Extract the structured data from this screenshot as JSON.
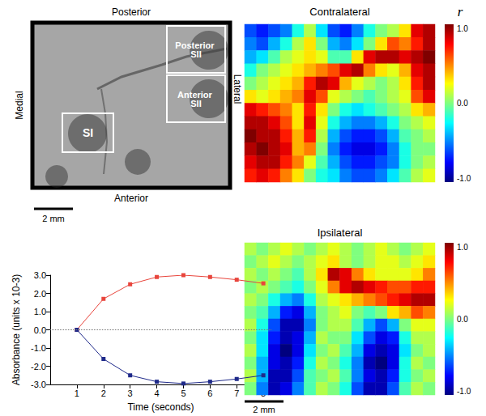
{
  "chart_data": [
    {
      "type": "image",
      "labels": {
        "top": "Posterior",
        "bottom": "Anterior",
        "left": "Medial",
        "right": "Lateral"
      },
      "regions": [
        "SI",
        "Posterior SII",
        "Anterior SII"
      ],
      "scale_bar": "2 mm"
    },
    {
      "type": "heatmap",
      "title": "Contralateral",
      "color_label": "r",
      "tick_labels": false,
      "color_range": [
        -1,
        1
      ],
      "color_ticks": [
        {
          "value": 1,
          "label": "1.0"
        },
        {
          "value": 0,
          "label": "0.0"
        },
        {
          "value": -1,
          "label": "-1.0"
        }
      ],
      "cells": [
        [
          -0.6,
          -0.7,
          -0.6,
          -0.5,
          -0.2,
          0.1,
          -0.3,
          -0.6,
          -0.7,
          -0.5,
          -0.2,
          0.0,
          0.1,
          0.3,
          0.8,
          0.9
        ],
        [
          -0.5,
          -0.6,
          -0.4,
          -0.2,
          0.1,
          0.3,
          0.0,
          -0.4,
          -0.5,
          -0.3,
          0.0,
          0.3,
          0.6,
          0.5,
          0.7,
          0.9
        ],
        [
          -0.4,
          -0.3,
          -0.1,
          0.1,
          0.2,
          0.3,
          0.2,
          -0.1,
          -0.1,
          0.3,
          0.8,
          0.9,
          0.9,
          0.8,
          0.9,
          1.0
        ],
        [
          -0.2,
          0.0,
          0.1,
          0.2,
          0.3,
          0.4,
          0.5,
          0.6,
          0.8,
          0.9,
          0.5,
          0.3,
          0.2,
          0.4,
          0.8,
          0.9
        ],
        [
          0.0,
          0.1,
          0.2,
          0.3,
          0.4,
          0.7,
          0.9,
          0.8,
          0.4,
          0.2,
          0.1,
          0.0,
          0.1,
          0.3,
          0.7,
          0.9
        ],
        [
          0.3,
          0.2,
          0.3,
          0.4,
          0.5,
          0.8,
          0.6,
          0.2,
          0.1,
          0.0,
          -0.1,
          0.0,
          0.1,
          0.2,
          0.6,
          0.8
        ],
        [
          0.8,
          0.7,
          0.6,
          0.5,
          0.3,
          0.7,
          0.3,
          0.0,
          -0.2,
          -0.3,
          -0.2,
          -0.1,
          0.0,
          0.1,
          0.3,
          0.4
        ],
        [
          0.9,
          0.9,
          0.8,
          0.6,
          0.3,
          0.8,
          0.2,
          -0.2,
          -0.4,
          -0.5,
          -0.5,
          -0.4,
          -0.2,
          0.0,
          0.1,
          0.2
        ],
        [
          1.0,
          0.9,
          0.9,
          0.7,
          0.4,
          0.7,
          0.1,
          -0.4,
          -0.6,
          -0.7,
          -0.7,
          -0.6,
          -0.4,
          -0.1,
          0.0,
          0.1
        ],
        [
          0.9,
          1.0,
          0.9,
          0.8,
          0.4,
          0.5,
          0.0,
          -0.5,
          -0.7,
          -0.8,
          -0.8,
          -0.7,
          -0.5,
          -0.2,
          0.0,
          0.0
        ],
        [
          0.8,
          0.9,
          0.9,
          0.7,
          0.5,
          0.2,
          -0.1,
          -0.4,
          -0.6,
          -0.7,
          -0.7,
          -0.6,
          -0.5,
          -0.2,
          0.0,
          0.1
        ],
        [
          0.7,
          0.8,
          0.7,
          0.5,
          0.3,
          0.0,
          -0.2,
          -0.3,
          -0.5,
          -0.6,
          -0.6,
          -0.5,
          -0.3,
          -0.1,
          0.1,
          0.2
        ]
      ]
    },
    {
      "type": "heatmap",
      "title": "Ipsilateral",
      "tick_labels": false,
      "color_range": [
        -1,
        1
      ],
      "color_ticks": [
        {
          "value": 1,
          "label": "1.0"
        },
        {
          "value": 0,
          "label": "0.0"
        },
        {
          "value": -1,
          "label": "-1.0"
        }
      ],
      "scale_bar": "2 mm",
      "cells": [
        [
          0.1,
          0.0,
          0.1,
          0.2,
          0.1,
          0.0,
          0.1,
          0.2,
          0.1,
          0.0,
          0.1,
          0.2,
          0.1,
          0.0,
          0.1,
          0.2
        ],
        [
          0.0,
          0.1,
          0.2,
          0.1,
          0.0,
          0.1,
          0.2,
          0.3,
          0.1,
          0.0,
          0.1,
          0.2,
          0.2,
          0.1,
          0.2,
          0.3
        ],
        [
          0.1,
          0.0,
          0.1,
          0.0,
          -0.1,
          0.1,
          0.3,
          0.9,
          0.8,
          0.5,
          0.3,
          0.2,
          0.2,
          0.2,
          0.3,
          0.5
        ],
        [
          0.0,
          0.1,
          0.0,
          -0.1,
          -0.2,
          0.0,
          0.2,
          0.5,
          0.8,
          0.9,
          0.8,
          0.7,
          0.6,
          0.6,
          0.7,
          0.7
        ],
        [
          0.1,
          0.0,
          -0.2,
          -0.4,
          -0.5,
          -0.2,
          0.1,
          0.2,
          0.3,
          0.4,
          0.5,
          0.6,
          0.7,
          0.8,
          0.9,
          0.9
        ],
        [
          0.0,
          -0.1,
          -0.4,
          -0.7,
          -0.8,
          -0.4,
          0.0,
          0.1,
          0.2,
          0.0,
          -0.1,
          0.0,
          0.3,
          0.4,
          0.6,
          0.5
        ],
        [
          0.1,
          -0.2,
          -0.6,
          -0.9,
          -0.9,
          -0.5,
          0.0,
          0.1,
          0.1,
          -0.1,
          -0.4,
          -0.6,
          -0.4,
          0.0,
          0.2,
          0.2
        ],
        [
          0.0,
          -0.3,
          -0.7,
          -0.9,
          -0.8,
          -0.4,
          0.1,
          0.0,
          0.0,
          -0.3,
          -0.6,
          -0.8,
          -0.7,
          -0.2,
          0.1,
          0.1
        ],
        [
          0.1,
          -0.3,
          -0.8,
          -1.0,
          -0.8,
          -0.3,
          0.0,
          0.1,
          -0.1,
          -0.4,
          -0.8,
          -0.9,
          -0.8,
          -0.3,
          0.0,
          0.1
        ],
        [
          0.0,
          -0.4,
          -0.8,
          -0.9,
          -0.7,
          -0.2,
          0.1,
          0.0,
          -0.2,
          -0.5,
          -0.9,
          -1.0,
          -0.8,
          -0.2,
          0.1,
          0.0
        ],
        [
          0.1,
          -0.4,
          -0.9,
          -0.9,
          -0.6,
          -0.1,
          0.0,
          0.1,
          -0.1,
          -0.5,
          -0.8,
          -0.9,
          -0.7,
          -0.2,
          0.0,
          0.1
        ],
        [
          0.0,
          -0.5,
          -0.9,
          -0.8,
          -0.5,
          -0.1,
          0.1,
          0.0,
          -0.2,
          -0.6,
          -0.9,
          -0.9,
          -0.6,
          -0.1,
          0.1,
          0.0
        ]
      ]
    },
    {
      "type": "line",
      "x_label": "Time (seconds)",
      "y_label": "Absorbance (units x 10-3)",
      "x": [
        1,
        2,
        3,
        4,
        5,
        6,
        7,
        8
      ],
      "xlim": [
        0,
        8.3
      ],
      "xticks": [
        1,
        2,
        3,
        4,
        5,
        6,
        7,
        8
      ],
      "ylim": [
        -3,
        3
      ],
      "yticks": [
        {
          "value": -3,
          "label": "-3.0"
        },
        {
          "value": -2,
          "label": "-2.0"
        },
        {
          "value": -1,
          "label": "-1.0"
        },
        {
          "value": 0,
          "label": "0.0"
        },
        {
          "value": 1,
          "label": "1.0"
        },
        {
          "value": 2,
          "label": "2.0"
        },
        {
          "value": 3,
          "label": "3.0"
        }
      ],
      "reference_y": 0,
      "grid": false,
      "marker": "square",
      "series": [
        {
          "color": "#e8453c",
          "values": [
            0.0,
            1.7,
            2.5,
            2.9,
            3.0,
            2.9,
            2.75,
            2.55
          ]
        },
        {
          "color": "#1f2a8a",
          "values": [
            0.0,
            -1.6,
            -2.5,
            -2.85,
            -2.95,
            -2.85,
            -2.7,
            -2.5
          ]
        }
      ]
    }
  ]
}
